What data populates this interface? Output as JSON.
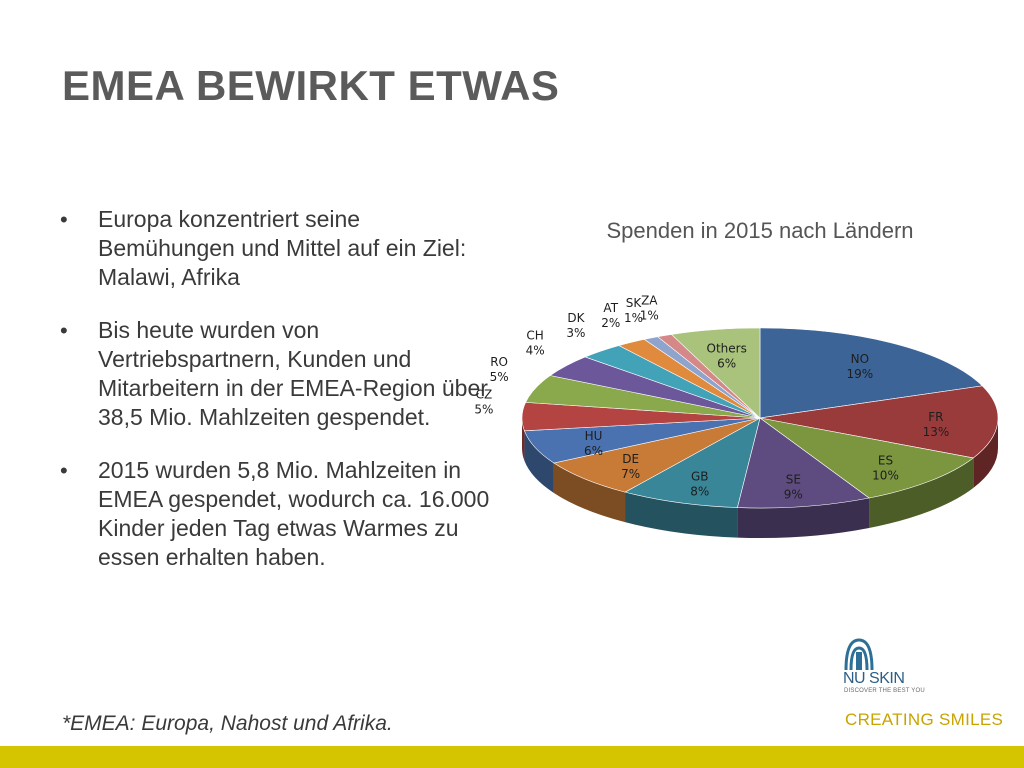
{
  "slide": {
    "title": "EMEA BEWIRKT ETWAS",
    "bullets": [
      "Europa konzentriert seine Bemühungen und Mittel auf ein Ziel: Malawi, Afrika",
      "Bis heute wurden von Vertriebspartnern, Kunden und Mitarbeitern in der EMEA-Region über 38,5 Mio. Mahlzeiten gespendet.",
      "2015 wurden 5,8 Mio. Mahlzeiten in EMEA gespendet, wodurch ca. 16.000 Kinder jeden Tag etwas Warmes zu essen erhalten haben."
    ],
    "bullet_glyph": "•",
    "footnote": "*EMEA: Europa, Nahost und Afrika.",
    "accent_color": "#d4c500"
  },
  "logo": {
    "name": "NU SKIN",
    "tagline": "DISCOVER THE BEST YOU",
    "slogan": "CREATING SMILES",
    "icon": "nu-skin-logo-icon",
    "brand_color": "#2d5f86",
    "slogan_color": "#c8a400"
  },
  "chart_data": {
    "type": "pie",
    "title": "Spenden in 2015 nach Ländern",
    "style": "3d",
    "slices": [
      {
        "label": "NO",
        "value": 19,
        "display": "19%",
        "color": "#3c6496"
      },
      {
        "label": "FR",
        "value": 13,
        "display": "13%",
        "color": "#9a3b3b"
      },
      {
        "label": "ES",
        "value": 10,
        "display": "10%",
        "color": "#7c963f"
      },
      {
        "label": "SE",
        "value": 9,
        "display": "9%",
        "color": "#5e4b80"
      },
      {
        "label": "GB",
        "value": 8,
        "display": "8%",
        "color": "#3a8699"
      },
      {
        "label": "DE",
        "value": 7,
        "display": "7%",
        "color": "#c87a37"
      },
      {
        "label": "HU",
        "value": 6,
        "display": "6%",
        "color": "#4a72b0"
      },
      {
        "label": "CZ",
        "value": 5,
        "display": "5%",
        "color": "#b34442"
      },
      {
        "label": "RO",
        "value": 5,
        "display": "5%",
        "color": "#8aa84c"
      },
      {
        "label": "CH",
        "value": 4,
        "display": "4%",
        "color": "#6c579a"
      },
      {
        "label": "DK",
        "value": 3,
        "display": "3%",
        "color": "#42a2b8"
      },
      {
        "label": "AT",
        "value": 2,
        "display": "2%",
        "color": "#e08a3e"
      },
      {
        "label": "SK",
        "value": 1,
        "display": "1%",
        "color": "#8ea4cc"
      },
      {
        "label": "ZA",
        "value": 1,
        "display": "1%",
        "color": "#d48888"
      },
      {
        "label": "Others",
        "value": 6,
        "display": "6%",
        "color": "#a9c27c"
      }
    ]
  }
}
